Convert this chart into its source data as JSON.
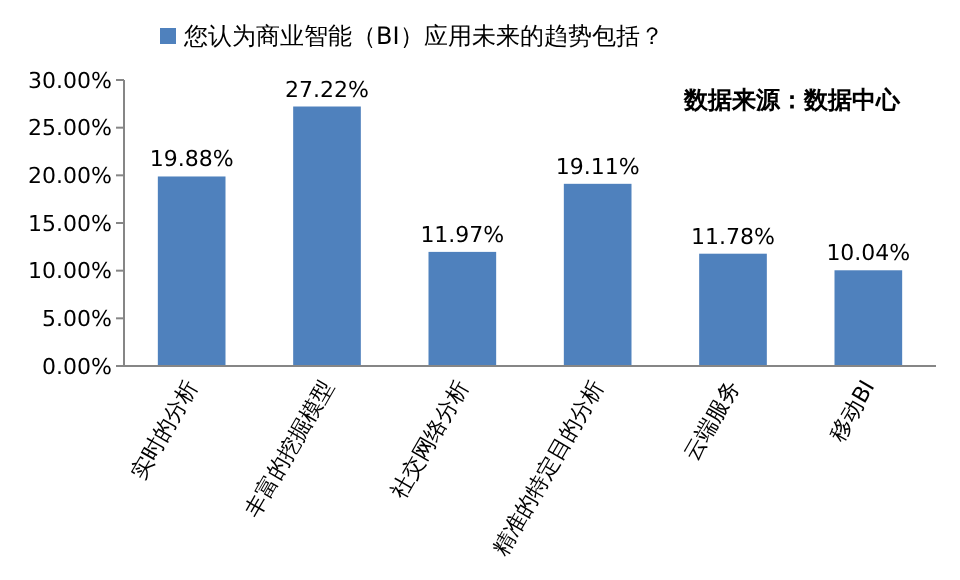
{
  "chart_data": {
    "type": "bar",
    "categories": [
      "实时的分析",
      "丰富的挖掘模型",
      "社交网络分析",
      "精准的特定目的分析",
      "云端服务",
      "移动BI"
    ],
    "series": [
      {
        "name": "您认为商业智能（BI）应用未来的趋势包括？",
        "color": "#4f81bd",
        "values": [
          19.88,
          27.22,
          11.97,
          19.11,
          11.78,
          10.04
        ],
        "value_labels": [
          "19.88%",
          "27.22%",
          "11.97%",
          "19.11%",
          "11.78%",
          "10.04%"
        ]
      }
    ],
    "ylim": [
      0,
      30
    ],
    "yticks": [
      {
        "value": 0,
        "label": "0.00%"
      },
      {
        "value": 5,
        "label": "5.00%"
      },
      {
        "value": 10,
        "label": "10.00%"
      },
      {
        "value": 15,
        "label": "15.00%"
      },
      {
        "value": 20,
        "label": "20.00%"
      },
      {
        "value": 25,
        "label": "25.00%"
      },
      {
        "value": 30,
        "label": "30.00%"
      }
    ],
    "annotations": [
      "数据来源：数据中心"
    ],
    "legend": "top left",
    "grid": false
  }
}
